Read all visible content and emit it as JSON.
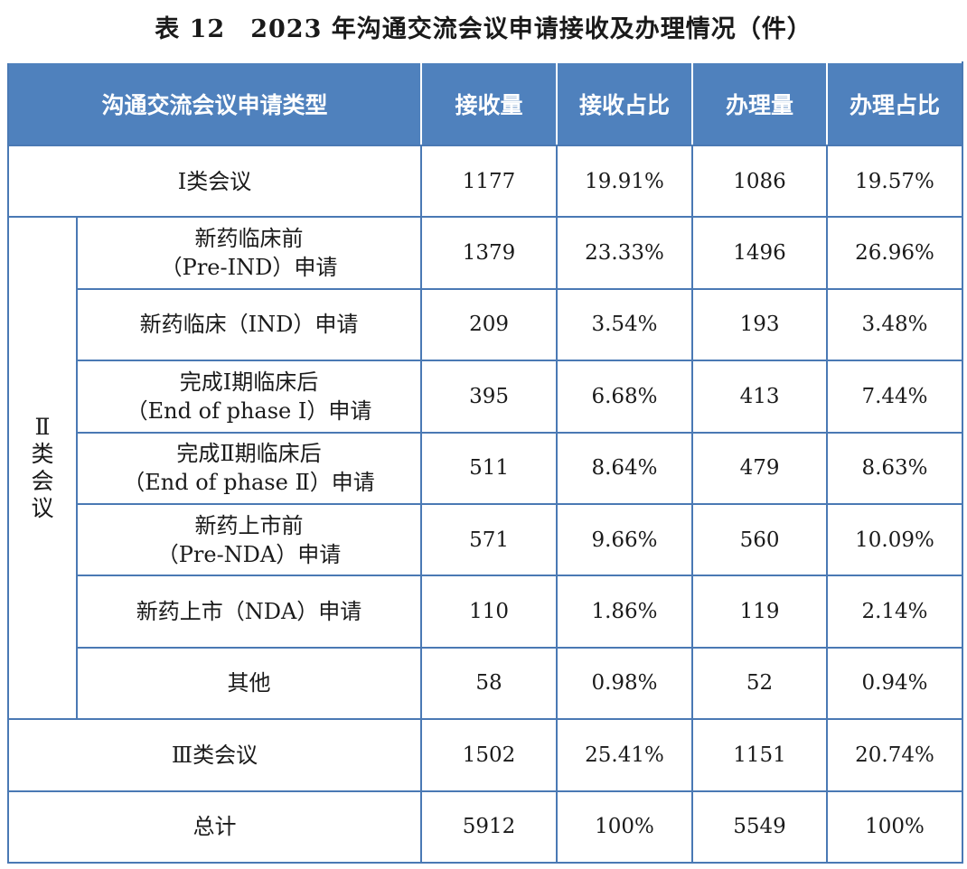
{
  "caption": "表 12　2023 年沟通交流会议申请接收及办理情况（件）",
  "headers": {
    "type": "沟通交流会议申请类型",
    "received": "接收量",
    "received_pct": "接收占比",
    "handled": "办理量",
    "handled_pct": "办理占比"
  },
  "group2": {
    "chars": [
      "Ⅱ",
      "类",
      "会",
      "议"
    ]
  },
  "rows": [
    {
      "name": [
        "Ⅰ类会议"
      ],
      "received": "1177",
      "received_pct": "19.91%",
      "handled": "1086",
      "handled_pct": "19.57%"
    },
    {
      "name": [
        "新药临床前",
        "（Pre-IND）申请"
      ],
      "received": "1379",
      "received_pct": "23.33%",
      "handled": "1496",
      "handled_pct": "26.96%"
    },
    {
      "name": [
        "新药临床（IND）申请"
      ],
      "received": "209",
      "received_pct": "3.54%",
      "handled": "193",
      "handled_pct": "3.48%"
    },
    {
      "name": [
        "完成Ⅰ期临床后",
        "（End of phase Ⅰ）申请"
      ],
      "received": "395",
      "received_pct": "6.68%",
      "handled": "413",
      "handled_pct": "7.44%"
    },
    {
      "name": [
        "完成Ⅱ期临床后",
        "（End of phase Ⅱ）申请"
      ],
      "received": "511",
      "received_pct": "8.64%",
      "handled": "479",
      "handled_pct": "8.63%"
    },
    {
      "name": [
        "新药上市前",
        "（Pre-NDA）申请"
      ],
      "received": "571",
      "received_pct": "9.66%",
      "handled": "560",
      "handled_pct": "10.09%"
    },
    {
      "name": [
        "新药上市（NDA）申请"
      ],
      "received": "110",
      "received_pct": "1.86%",
      "handled": "119",
      "handled_pct": "2.14%"
    },
    {
      "name": [
        "其他"
      ],
      "received": "58",
      "received_pct": "0.98%",
      "handled": "52",
      "handled_pct": "0.94%"
    },
    {
      "name": [
        "Ⅲ类会议"
      ],
      "received": "1502",
      "received_pct": "25.41%",
      "handled": "1151",
      "handled_pct": "20.74%"
    },
    {
      "name": [
        "总计"
      ],
      "received": "5912",
      "received_pct": "100%",
      "handled": "5549",
      "handled_pct": "100%"
    }
  ]
}
